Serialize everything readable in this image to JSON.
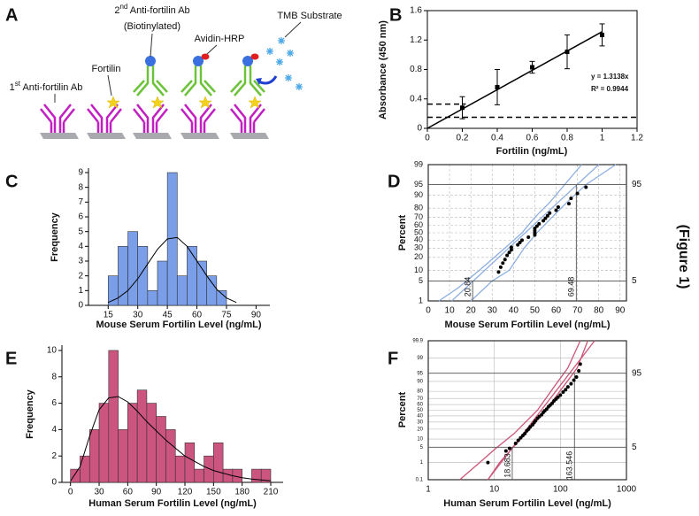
{
  "figure_label": "(Figure 1)",
  "diagram": {
    "panel": "A",
    "labels": {
      "primary_ab": [
        "1",
        "st",
        " Anti-fortilin Ab"
      ],
      "fortilin": "Fortilin",
      "secondary_ab": [
        "2",
        "nd",
        " Anti-fortilin Ab"
      ],
      "biotinylated": "(Biotinylated)",
      "avidin": "Avidin-HRP",
      "substrate": "TMB Substrate"
    }
  },
  "chart_data": [
    {
      "panel": "B",
      "type": "scatter",
      "x": [
        0.2,
        0.4,
        0.6,
        0.8,
        1
      ],
      "values": [
        0.28,
        0.56,
        0.83,
        1.04,
        1.27
      ],
      "errors": [
        0.15,
        0.24,
        0.08,
        0.23,
        0.15
      ],
      "color": "#000000",
      "xlabel": "Fortilin (ng/mL)",
      "ylabel": "Absorbance (450 nm)",
      "xlim": [
        0,
        1.2
      ],
      "ylim": [
        0,
        1.6
      ],
      "xticks": [
        0,
        0.2,
        0.4,
        0.6,
        0.8,
        1,
        1.2
      ],
      "yticks": [
        0,
        0.4,
        0.8,
        1.2,
        1.6
      ],
      "fit_line": {
        "x": [
          0,
          1
        ],
        "y": [
          0,
          1.3138
        ]
      },
      "reference_lines": [
        {
          "y": 0.33,
          "x": [
            0,
            0.22
          ]
        },
        {
          "y": 0.15,
          "x": [
            0,
            1.2
          ]
        }
      ],
      "annotations": [
        "y = 1.3138x",
        "R² = 0.9944"
      ]
    },
    {
      "panel": "C",
      "type": "histogram",
      "bins": [
        15,
        20,
        25,
        30,
        35,
        40,
        45,
        50,
        55,
        60,
        65,
        70,
        75
      ],
      "values": [
        2,
        4,
        5,
        4,
        1,
        3,
        9,
        2,
        4,
        3,
        2,
        1
      ],
      "color": "#7b9ee8",
      "curve": {
        "x": [
          15,
          20,
          25,
          30,
          35,
          40,
          45,
          50,
          55,
          60,
          65,
          70,
          75,
          80
        ],
        "y": [
          0.2,
          0.5,
          1,
          1.8,
          2.8,
          3.8,
          4.5,
          4.6,
          4,
          3,
          2,
          1.1,
          0.5,
          0.2
        ]
      },
      "xlabel": "Mouse Serum Fortilin Level (ng/mL)",
      "ylabel": "Frequency",
      "xlim": [
        5,
        97
      ],
      "ylim": [
        0,
        9.3
      ],
      "xticks": [
        15,
        30,
        45,
        60,
        75,
        90
      ],
      "yticks": [
        0,
        1,
        2,
        3,
        4,
        5,
        6,
        7,
        8,
        9
      ]
    },
    {
      "panel": "D",
      "type": "probability",
      "xscale": "linear",
      "yscale": "probability",
      "grid": true,
      "grid_style": "dashed",
      "x": [
        33,
        34,
        35,
        36,
        37,
        38,
        39,
        39,
        42,
        43,
        44,
        47,
        50,
        50,
        50,
        50,
        51,
        52,
        54,
        55,
        56,
        57,
        60,
        61,
        66,
        67,
        70,
        74
      ],
      "values": [
        9,
        12,
        15,
        18,
        22,
        25,
        28,
        31,
        34,
        37,
        40,
        44,
        47,
        50,
        53,
        56,
        59,
        62,
        66,
        69,
        72,
        75,
        78,
        81,
        84,
        88,
        91,
        94
      ],
      "color": "#000000",
      "band_color": "#8fb0e0",
      "fit_line": {
        "x": [
          11,
          80
        ],
        "y": [
          1,
          99
        ]
      },
      "band_upper": {
        "x": [
          5,
          14,
          24,
          36,
          44,
          50,
          57,
          64,
          72
        ],
        "y": [
          1,
          3,
          10,
          30,
          50,
          70,
          85,
          95,
          99
        ]
      },
      "band_lower": {
        "x": [
          20,
          30,
          38,
          45,
          51,
          58,
          65,
          74,
          88
        ],
        "y": [
          1,
          5,
          10,
          30,
          50,
          70,
          85,
          95,
          99
        ]
      },
      "ref_x": [
        20.84,
        69.48
      ],
      "ref_y": [
        5,
        95
      ],
      "xlabel": "Mouse Serum Fortilin Level (ng/mL)",
      "ylabel": "Percent",
      "xlim": [
        0,
        93
      ],
      "ylim": [
        1,
        99
      ],
      "xticks": [
        0,
        10,
        20,
        30,
        40,
        50,
        60,
        70,
        80,
        90
      ],
      "yticks": [
        1,
        5,
        10,
        20,
        30,
        40,
        50,
        60,
        70,
        80,
        90,
        95,
        99
      ]
    },
    {
      "panel": "E",
      "type": "histogram",
      "bins": [
        0,
        10,
        20,
        30,
        40,
        50,
        60,
        70,
        80,
        90,
        100,
        110,
        120,
        130,
        140,
        150,
        160,
        170,
        180,
        190,
        200,
        210
      ],
      "values": [
        1,
        2,
        4,
        6,
        10,
        4,
        6,
        7,
        6,
        5,
        4,
        2,
        3,
        1,
        2,
        3,
        1,
        1,
        0,
        1,
        1
      ],
      "color": "#cc5580",
      "curve": {
        "x": [
          0,
          10,
          20,
          30,
          40,
          50,
          60,
          70,
          80,
          90,
          100,
          110,
          120,
          130,
          140,
          150,
          160,
          170,
          180,
          190,
          200,
          210
        ],
        "y": [
          0.1,
          1.2,
          3.5,
          5.5,
          6.4,
          6.5,
          6.1,
          5.4,
          4.6,
          3.9,
          3.2,
          2.6,
          2,
          1.6,
          1.2,
          0.9,
          0.7,
          0.5,
          0.35,
          0.25,
          0.18,
          0.12
        ]
      },
      "xlabel": "Human Serum Fortilin Level (ng/mL)",
      "ylabel": "Frequency",
      "xlim": [
        -9,
        223
      ],
      "ylim": [
        0,
        10.4
      ],
      "xticks": [
        0,
        30,
        60,
        90,
        120,
        150,
        180,
        210
      ],
      "yticks": [
        0,
        2,
        4,
        6,
        8,
        10
      ]
    },
    {
      "panel": "F",
      "type": "probability",
      "xscale": "log",
      "yscale": "probability",
      "grid": true,
      "grid_style": "solid",
      "x": [
        8,
        15,
        17,
        21,
        23,
        25,
        27,
        29,
        31,
        33,
        35,
        38,
        40,
        42,
        45,
        48,
        52,
        55,
        58,
        62,
        66,
        70,
        75,
        80,
        86,
        92,
        100,
        110,
        120,
        130,
        145,
        160,
        175,
        190,
        200
      ],
      "values": [
        1,
        3.5,
        4.5,
        7,
        9,
        11,
        13,
        15,
        18,
        20,
        23,
        26,
        29,
        32,
        36,
        39,
        42,
        46,
        49,
        52,
        56,
        59,
        62,
        66,
        69,
        72,
        75,
        79,
        82,
        85,
        88,
        91,
        93,
        96,
        98
      ],
      "color": "#000000",
      "band_color": "#cc5577",
      "fit_line": {
        "x": [
          8,
          330
        ],
        "y": [
          0.1,
          99.9
        ]
      },
      "band_upper": {
        "x": [
          3,
          6,
          10,
          20,
          45,
          80,
          130,
          200
        ],
        "y": [
          0.1,
          1,
          4,
          15,
          50,
          85,
          97,
          99.9
        ]
      },
      "band_lower": {
        "x": [
          8,
          12,
          18,
          30,
          60,
          110,
          180,
          260
        ],
        "y": [
          0.1,
          1,
          4,
          15,
          50,
          85,
          97,
          99.9
        ]
      },
      "ref_x": [
        18.683,
        163.546
      ],
      "ref_y": [
        5,
        95
      ],
      "xlabel": "Human Serum Fortilin Level (ng/mL)",
      "ylabel": "Percent",
      "xlim": [
        1,
        1000
      ],
      "ylim": [
        0.1,
        99.9
      ],
      "xticks": [
        1,
        10,
        100,
        1000
      ],
      "yticks": [
        0.1,
        1,
        5,
        10,
        20,
        30,
        40,
        50,
        60,
        70,
        80,
        90,
        95,
        99,
        99.9
      ]
    }
  ]
}
